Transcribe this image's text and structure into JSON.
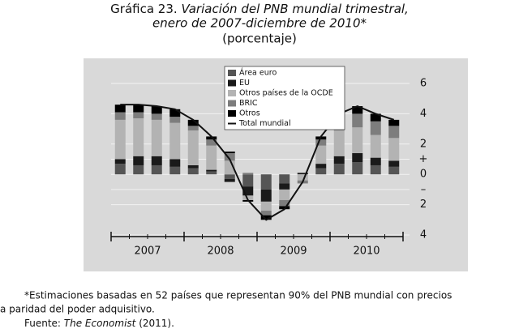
{
  "header": {
    "number": "Gráfica 23.",
    "title_line1": "Variación del PNB mundial trimestral,",
    "title_line2": "enero de 2007-diciembre de 2010*",
    "subtitle": "(porcentaje)"
  },
  "chart_data": {
    "type": "stacked_bar_line",
    "categories": [
      null,
      null,
      null,
      null,
      null,
      null,
      null,
      null,
      null,
      null,
      null,
      null,
      null,
      null,
      null,
      null
    ],
    "groups": [
      "2007",
      "2008",
      "2009",
      "2010"
    ],
    "series": [
      {
        "name": "Área euro",
        "color": "#555555",
        "values": [
          0.7,
          0.6,
          0.6,
          0.5,
          0.4,
          0.2,
          -0.3,
          -0.8,
          -1.0,
          -0.6,
          0.0,
          0.4,
          0.7,
          0.8,
          0.6,
          0.5
        ]
      },
      {
        "name": "EU",
        "color": "#1a1a1a",
        "values": [
          0.3,
          0.6,
          0.6,
          0.5,
          0.2,
          0.1,
          -0.2,
          -0.6,
          -0.8,
          -0.4,
          0.1,
          0.3,
          0.5,
          0.6,
          0.5,
          0.4
        ]
      },
      {
        "name": "Otros países de la OCDE",
        "color": "#b3b3b3",
        "values": [
          2.6,
          2.5,
          2.4,
          2.4,
          2.3,
          1.6,
          0.9,
          -0.3,
          -0.6,
          -0.7,
          -0.4,
          1.2,
          1.7,
          1.7,
          1.5,
          1.5
        ]
      },
      {
        "name": "BRIC",
        "color": "#7d7d7d",
        "values": [
          0.5,
          0.4,
          0.4,
          0.4,
          0.3,
          0.4,
          0.5,
          0.1,
          -0.3,
          -0.4,
          -0.2,
          0.4,
          0.7,
          0.9,
          0.9,
          0.8
        ]
      },
      {
        "name": "Otros",
        "color": "#000000",
        "values": [
          0.5,
          0.5,
          0.5,
          0.5,
          0.4,
          0.2,
          0.1,
          -0.1,
          -0.3,
          -0.2,
          0.0,
          0.2,
          0.4,
          0.5,
          0.5,
          0.4
        ]
      }
    ],
    "line": {
      "name": "Total mundial",
      "color": "#111111",
      "values": [
        4.6,
        4.6,
        4.5,
        4.3,
        3.6,
        2.5,
        1.0,
        -1.7,
        -3.0,
        -2.3,
        -0.5,
        2.5,
        4.0,
        4.5,
        4.0,
        3.6
      ]
    },
    "ylim": [
      -4,
      6
    ],
    "yticks": [
      6,
      4,
      2,
      {
        "value": 1,
        "label": "+"
      },
      0,
      {
        "value": -1,
        "label": "–"
      },
      {
        "value": -2,
        "label": "2"
      },
      {
        "value": -4,
        "label": "4"
      }
    ],
    "grid": true
  },
  "notes": {
    "line1": "*Estimaciones basadas en 52 países que representan 90% del PNB mundial con precios",
    "line2": "a paridad del poder adquisitivo.",
    "source_label": "Fuente: ",
    "source_title": "The Economist",
    "source_year": " (2011)."
  }
}
